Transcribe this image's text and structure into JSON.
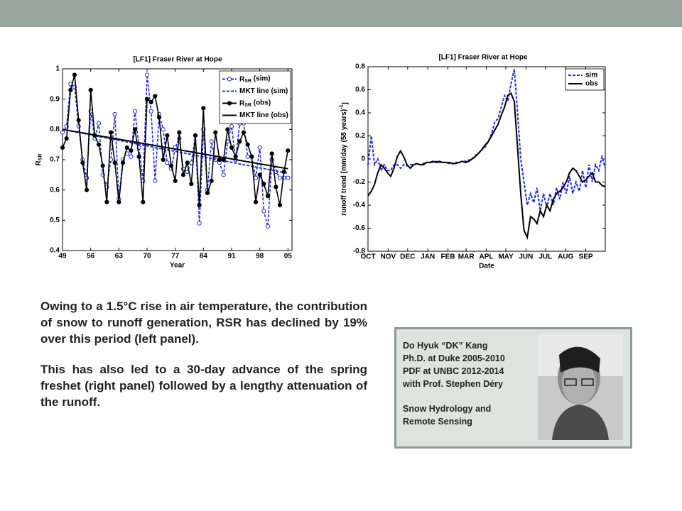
{
  "chart_data": [
    {
      "type": "line",
      "title": "[LF1] Fraser River at Hope",
      "x_label": "Year",
      "y_label": "RSR",
      "x": [
        1949,
        1950,
        1951,
        1952,
        1953,
        1954,
        1955,
        1956,
        1957,
        1958,
        1959,
        1960,
        1961,
        1962,
        1963,
        1964,
        1965,
        1966,
        1967,
        1968,
        1969,
        1970,
        1971,
        1972,
        1973,
        1974,
        1975,
        1976,
        1977,
        1978,
        1979,
        1980,
        1981,
        1982,
        1983,
        1984,
        1985,
        1986,
        1987,
        1988,
        1989,
        1990,
        1991,
        1992,
        1993,
        1994,
        1995,
        1996,
        1997,
        1998,
        1999,
        2000,
        2001,
        2002,
        2003,
        2004,
        2005
      ],
      "xlim": [
        1949,
        2006
      ],
      "xticks": [
        {
          "value": 1949,
          "label": "49"
        },
        {
          "value": 1956,
          "label": "56"
        },
        {
          "value": 1963,
          "label": "63"
        },
        {
          "value": 1970,
          "label": "70"
        },
        {
          "value": 1977,
          "label": "77"
        },
        {
          "value": 1984,
          "label": "84"
        },
        {
          "value": 1991,
          "label": "91"
        },
        {
          "value": 1998,
          "label": "98"
        },
        {
          "value": 2005,
          "label": "05"
        }
      ],
      "ylim": [
        0.4,
        1
      ],
      "yticks": [
        0.4,
        0.5,
        0.6,
        0.7,
        0.8,
        0.9,
        1
      ],
      "legend": "upper right",
      "series": [
        {
          "name": "RSR (sim)",
          "color": "#1f2fe0",
          "dash": true,
          "marker": "open-circle",
          "values": [
            0.79,
            0.81,
            0.95,
            0.94,
            0.81,
            0.7,
            0.64,
            0.86,
            0.77,
            0.82,
            0.65,
            0.61,
            0.7,
            0.85,
            0.57,
            0.7,
            0.72,
            0.71,
            0.86,
            0.74,
            0.63,
            0.98,
            0.86,
            0.63,
            0.85,
            0.8,
            0.69,
            0.67,
            0.74,
            0.77,
            0.67,
            0.66,
            0.69,
            0.78,
            0.49,
            0.8,
            0.6,
            0.76,
            0.7,
            0.69,
            0.65,
            0.76,
            0.81,
            0.7,
            0.82,
            0.82,
            0.71,
            0.71,
            0.64,
            0.74,
            0.53,
            0.48,
            0.7,
            0.66,
            0.64,
            0.64,
            0.64
          ]
        },
        {
          "name": "MKT line (sim)",
          "color": "#1f2fe0",
          "dash": true,
          "x": [
            1949,
            2005
          ],
          "values": [
            0.8,
            0.655
          ]
        },
        {
          "name": "RSR (obs)",
          "color": "#000000",
          "dash": false,
          "marker": "filled-circle",
          "values": [
            0.74,
            0.77,
            0.93,
            0.98,
            0.83,
            0.69,
            0.6,
            0.93,
            0.78,
            0.75,
            0.68,
            0.56,
            0.79,
            0.69,
            0.56,
            0.69,
            0.74,
            0.73,
            0.8,
            0.71,
            0.56,
            0.9,
            0.89,
            0.91,
            0.84,
            0.7,
            0.78,
            0.68,
            0.63,
            0.79,
            0.65,
            0.69,
            0.62,
            0.78,
            0.55,
            0.87,
            0.59,
            0.63,
            0.79,
            0.7,
            0.7,
            0.8,
            0.74,
            0.71,
            0.76,
            0.79,
            0.75,
            0.71,
            0.56,
            0.65,
            0.62,
            0.58,
            0.72,
            0.61,
            0.55,
            0.66,
            0.73
          ]
        },
        {
          "name": "MKT line (obs)",
          "color": "#000000",
          "dash": false,
          "x": [
            1949,
            2005
          ],
          "values": [
            0.8,
            0.67
          ]
        }
      ]
    },
    {
      "type": "line",
      "title": "[LF1] Fraser River at Hope",
      "x_label": "Date",
      "y_label": "runoff trend [mm/day  (58 years)-1]",
      "x": [
        0,
        5,
        10,
        15,
        20,
        25,
        30,
        35,
        40,
        45,
        50,
        55,
        60,
        65,
        70,
        75,
        80,
        85,
        90,
        95,
        100,
        105,
        110,
        115,
        120,
        125,
        130,
        135,
        140,
        145,
        150,
        155,
        160,
        165,
        170,
        175,
        180,
        185,
        190,
        195,
        200,
        205,
        210,
        215,
        220,
        225,
        230,
        235,
        240,
        245,
        250,
        255,
        260,
        265,
        270,
        275,
        280,
        285,
        290,
        295,
        300,
        305,
        310,
        315,
        320,
        325,
        330,
        335,
        340,
        345,
        350,
        355,
        360,
        365
      ],
      "xlim": [
        0,
        365
      ],
      "xticks": [
        {
          "value": 0,
          "label": "OCT"
        },
        {
          "value": 31,
          "label": "NOV"
        },
        {
          "value": 61,
          "label": "DEC"
        },
        {
          "value": 92,
          "label": "JAN"
        },
        {
          "value": 123,
          "label": "FEB"
        },
        {
          "value": 151,
          "label": "MAR"
        },
        {
          "value": 182,
          "label": "APL"
        },
        {
          "value": 212,
          "label": "MAY"
        },
        {
          "value": 243,
          "label": "JUN"
        },
        {
          "value": 273,
          "label": "JUL"
        },
        {
          "value": 304,
          "label": "AUG"
        },
        {
          "value": 335,
          "label": "SEP"
        }
      ],
      "ylim": [
        -0.8,
        0.8
      ],
      "yticks": [
        -0.8,
        -0.6,
        -0.4,
        -0.2,
        0,
        0.2,
        0.4,
        0.6,
        0.8
      ],
      "legend": "upper right",
      "series": [
        {
          "name": "sim",
          "color": "#1f2fe0",
          "dash": true,
          "values": [
            -0.05,
            0.2,
            -0.05,
            0.0,
            -0.1,
            -0.05,
            -0.1,
            -0.1,
            -0.05,
            -0.05,
            -0.08,
            -0.05,
            -0.06,
            -0.05,
            -0.05,
            -0.04,
            -0.05,
            -0.04,
            -0.03,
            -0.03,
            -0.03,
            -0.02,
            -0.03,
            -0.03,
            -0.03,
            -0.04,
            -0.04,
            -0.03,
            -0.03,
            -0.02,
            -0.02,
            -0.01,
            0.0,
            0.03,
            0.05,
            0.08,
            0.1,
            0.15,
            0.22,
            0.32,
            0.35,
            0.45,
            0.55,
            0.5,
            0.65,
            0.78,
            0.4,
            0.0,
            -0.2,
            -0.4,
            -0.3,
            -0.38,
            -0.25,
            -0.45,
            -0.3,
            -0.42,
            -0.3,
            -0.4,
            -0.25,
            -0.35,
            -0.2,
            -0.3,
            -0.15,
            -0.3,
            -0.2,
            -0.28,
            -0.1,
            -0.25,
            -0.05,
            -0.2,
            -0.05,
            -0.1,
            0.02,
            -0.08
          ]
        },
        {
          "name": "obs",
          "color": "#000000",
          "dash": false,
          "values": [
            -0.32,
            -0.28,
            -0.22,
            -0.12,
            -0.05,
            -0.08,
            -0.12,
            -0.15,
            -0.08,
            0.02,
            0.07,
            0.02,
            -0.05,
            -0.08,
            -0.05,
            -0.04,
            -0.05,
            -0.05,
            -0.03,
            -0.03,
            -0.02,
            -0.03,
            -0.02,
            -0.03,
            -0.03,
            -0.03,
            -0.04,
            -0.04,
            -0.03,
            -0.02,
            -0.03,
            -0.02,
            0.0,
            0.02,
            0.05,
            0.08,
            0.12,
            0.15,
            0.2,
            0.25,
            0.3,
            0.38,
            0.45,
            0.55,
            0.57,
            0.5,
            0.1,
            -0.3,
            -0.62,
            -0.68,
            -0.5,
            -0.52,
            -0.56,
            -0.45,
            -0.5,
            -0.4,
            -0.45,
            -0.35,
            -0.3,
            -0.28,
            -0.25,
            -0.2,
            -0.12,
            -0.08,
            -0.1,
            -0.15,
            -0.2,
            -0.18,
            -0.15,
            -0.12,
            -0.2,
            -0.2,
            -0.23,
            -0.24
          ]
        }
      ]
    }
  ],
  "text": {
    "paragraphs": [
      "Owing to a 1.5°C rise in air temperature, the contribution of snow to runoff generation, RSR has declined by 19% over this period (left panel).",
      "This has also led to a 30-day advance of the spring freshet (right panel) followed by a lengthy attenuation of the runoff."
    ]
  },
  "bio": {
    "lines": [
      "Do Hyuk “DK” Kang",
      "Ph.D. at Duke 2005-2010",
      "PDF at UNBC 2012-2014",
      "with Prof. Stephen Déry"
    ],
    "topic": [
      "Snow Hydrology and",
      "Remote  Sensing"
    ]
  }
}
